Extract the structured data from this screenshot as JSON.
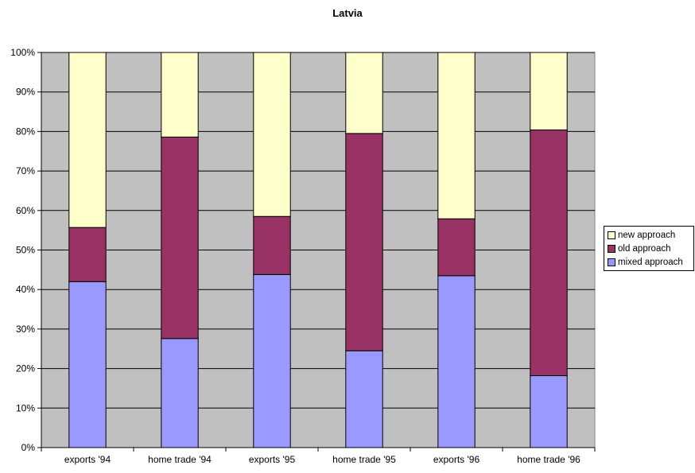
{
  "chart_data": {
    "type": "bar",
    "stacked": true,
    "title": "Latvia",
    "xlabel": "",
    "ylabel": "",
    "ylim": [
      0,
      100
    ],
    "y_tick_labels": [
      "0%",
      "10%",
      "20%",
      "30%",
      "40%",
      "50%",
      "60%",
      "70%",
      "80%",
      "90%",
      "100%"
    ],
    "grid": true,
    "legend_position": "right",
    "plot_background": "#c0c0c0",
    "categories": [
      "exports '94",
      "home trade '94",
      "exports '95",
      "home trade '95",
      "exports '96",
      "home trade '96"
    ],
    "series": [
      {
        "name": "mixed approach",
        "color": "#9999ff",
        "values": [
          42,
          27.6,
          43.8,
          24.5,
          43.5,
          18.2
        ]
      },
      {
        "name": "old approach",
        "color": "#993366",
        "values": [
          13.7,
          51,
          14.7,
          55,
          14.4,
          62.2
        ]
      },
      {
        "name": "new approach",
        "color": "#ffffcc",
        "values": [
          44.3,
          21.4,
          41.5,
          20.5,
          42.1,
          19.6
        ]
      }
    ],
    "legend_order": [
      "new approach",
      "old approach",
      "mixed approach"
    ]
  }
}
